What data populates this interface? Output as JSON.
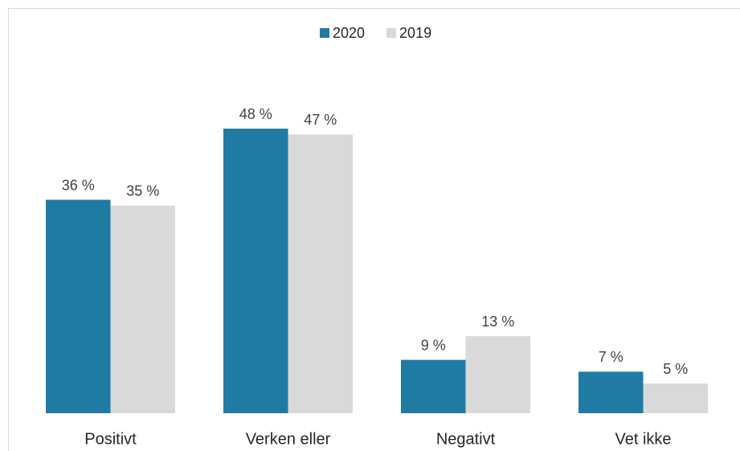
{
  "chart_data": {
    "type": "bar",
    "categories": [
      "Positivt",
      "Verken eller",
      "Negativt",
      "Vet ikke"
    ],
    "series": [
      {
        "name": "2020",
        "color": "#1f7ba3",
        "values": [
          36,
          48,
          9,
          7
        ],
        "value_labels": [
          "36 %",
          "48 %",
          "9 %",
          "7 %"
        ]
      },
      {
        "name": "2019",
        "color": "#d9d9d9",
        "values": [
          35,
          47,
          13,
          5
        ],
        "value_labels": [
          "35 %",
          "47 %",
          "13 %",
          "5 %"
        ]
      }
    ],
    "ylim": [
      0,
      60
    ],
    "legend": "top"
  }
}
